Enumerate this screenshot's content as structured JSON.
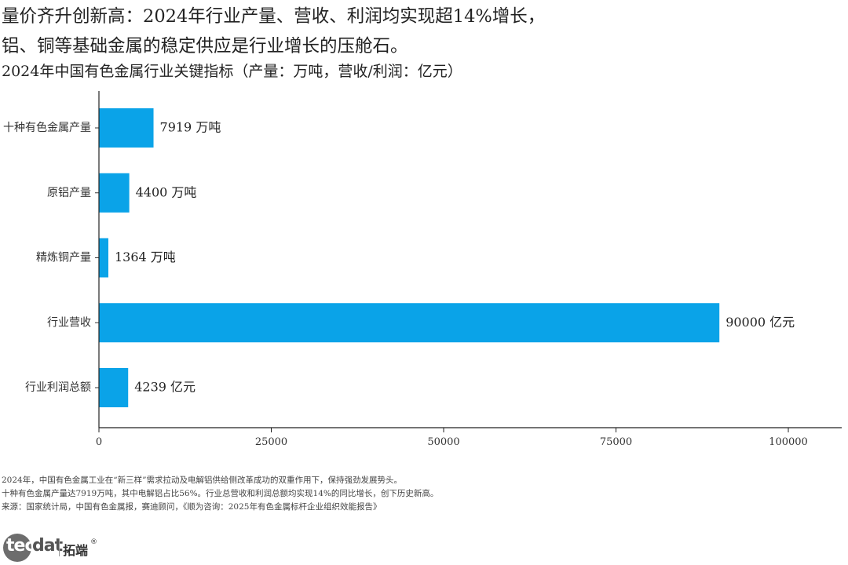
{
  "header": {
    "headline_line1": "量价齐升创新高：2024年行业产量、营收、利润均实现超14%增长，",
    "headline_line2": "铝、铜等基础金属的稳定供应是行业增长的压舱石。",
    "subtitle": "2024年中国有色金属行业关键指标（产量：万吨，营收/利润：亿元）"
  },
  "chart_data": {
    "type": "bar",
    "orientation": "horizontal",
    "categories": [
      "十种有色金属产量",
      "原铝产量",
      "精炼铜产量",
      "行业营收",
      "行业利润总额"
    ],
    "values": [
      7919,
      4400,
      1364,
      90000,
      4239
    ],
    "value_labels": [
      "7919 万吨",
      "4400 万吨",
      "1364 万吨",
      "90000 亿元",
      "4239 亿元"
    ],
    "xlim": [
      0,
      100000
    ],
    "x_ticks": [
      0,
      25000,
      50000,
      75000,
      100000
    ],
    "x_tick_labels": [
      "0",
      "25000",
      "50000",
      "75000",
      "100000"
    ],
    "bar_color": "#0aa3e8",
    "grid": false
  },
  "notes": {
    "line1": "2024年，中国有色金属工业在“新三样”需求拉动及电解铝供给侧改革成功的双重作用下，保持强劲发展势头。",
    "line2": "十种有色金属产量达7919万吨，其中电解铝占比56%。行业总营收和利润总额均实现14%的同比增长，创下历史新高。",
    "line3": "来源：国家统计局，中国有色金属报，赛迪顾问，《顺为咨询：2025年有色金属标杆企业组织效能报告》"
  },
  "logo": {
    "part1": "tec",
    "part2": "dat",
    "cn": "拓端",
    "reg": "®"
  }
}
